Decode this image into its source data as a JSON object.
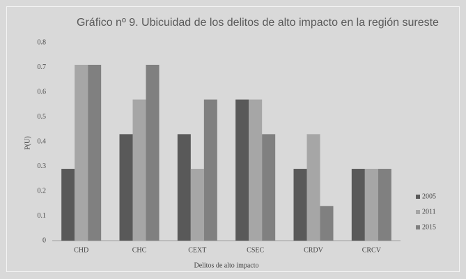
{
  "chart_data": {
    "type": "bar",
    "title": "Gráfico nº 9. Ubicuidad de los delitos de alto impacto en la región sureste",
    "x_label": "Delitos de alto impacto",
    "y_label": "P(U)",
    "categories": [
      "CHD",
      "CHC",
      "CEXT",
      "CSEC",
      "CRDV",
      "CRCV"
    ],
    "series": [
      {
        "name": "2005",
        "color": "#595959",
        "values": [
          0.29,
          0.43,
          0.43,
          0.57,
          0.29,
          0.29
        ]
      },
      {
        "name": "2011",
        "color": "#a6a6a6",
        "values": [
          0.71,
          0.57,
          0.29,
          0.57,
          0.43,
          0.29
        ]
      },
      {
        "name": "2015",
        "color": "#808080",
        "values": [
          0.71,
          0.71,
          0.57,
          0.43,
          0.14,
          0.29
        ]
      }
    ],
    "ylim": [
      0,
      0.8
    ],
    "yticks": [
      0,
      0.1,
      0.2,
      0.3,
      0.4,
      0.5,
      0.6,
      0.7,
      0.8
    ],
    "grid": false,
    "legend": "right"
  }
}
